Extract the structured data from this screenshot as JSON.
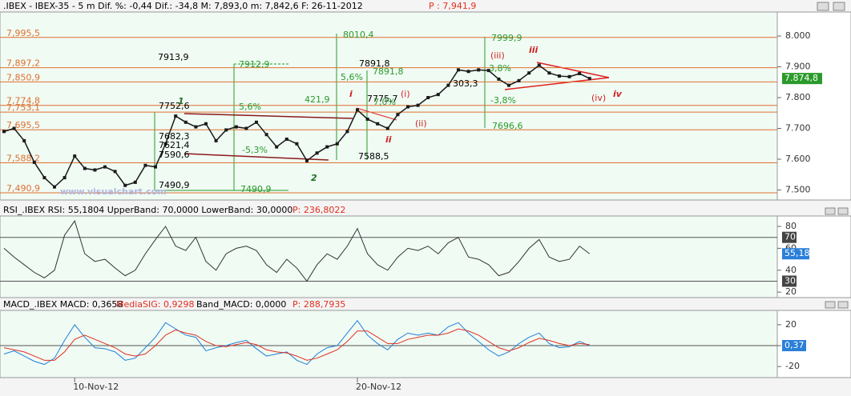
{
  "chart_data": [
    {
      "type": "line",
      "title": ".IBEX - IBEX-35 - 5 m Dif. %: -0,44 Dif.: -34,8 M: 7,893,0 m: 7,842,6 F: 26-11-2012",
      "title_extra": "P : 7,941,9",
      "watermark": "www.visualchart.com",
      "last_label": "7.874,8",
      "categories": [
        null,
        null,
        null,
        null,
        null,
        null,
        null,
        "10-Nov-12",
        null,
        null,
        null,
        null,
        null,
        null,
        null,
        null,
        null,
        null,
        null,
        null,
        null,
        null,
        null,
        null,
        null,
        null,
        null,
        null,
        null,
        null,
        null,
        null,
        null,
        null,
        null,
        "20-Nov-12",
        null,
        null,
        null,
        null,
        null,
        null,
        null,
        null,
        null,
        null,
        null,
        null,
        null,
        null,
        null,
        null,
        null,
        null,
        null,
        null,
        null,
        null,
        null
      ],
      "series": [
        {
          "name": "IBEX",
          "color": "#1a1a1a",
          "values": [
            7690,
            7700,
            7660,
            7590,
            7540,
            7510,
            7540,
            7610,
            7570,
            7565,
            7575,
            7560,
            7515,
            7525,
            7580,
            7575,
            7650,
            7740,
            7720,
            7705,
            7715,
            7660,
            7695,
            7705,
            7700,
            7720,
            7680,
            7640,
            7665,
            7650,
            7595,
            7620,
            7640,
            7650,
            7690,
            7760,
            7730,
            7715,
            7700,
            7745,
            7770,
            7775,
            7800,
            7810,
            7840,
            7890,
            7885,
            7890,
            7888,
            7860,
            7840,
            7855,
            7880,
            7905,
            7880,
            7870,
            7868,
            7878,
            7862
          ]
        }
      ],
      "ylim": [
        7467.5,
        8078
      ],
      "yticks": [
        {
          "value": 8000,
          "label": "8.000"
        },
        {
          "value": 7900,
          "label": "7.900"
        },
        {
          "value": 7800,
          "label": "7.800"
        },
        {
          "value": 7700,
          "label": "7.700"
        },
        {
          "value": 7600,
          "label": "7.600"
        },
        {
          "value": 7500,
          "label": "7.500"
        }
      ],
      "levels": [
        {
          "value": 7995.5,
          "label": "7,995,5"
        },
        {
          "value": 7897.2,
          "label": "7,897,2"
        },
        {
          "value": 7850.9,
          "label": "7,850,9"
        },
        {
          "value": 7774.8,
          "label": "7,774,8"
        },
        {
          "value": 7753.1,
          "label": "7,753,1"
        },
        {
          "value": 7695.5,
          "label": "7,695,5"
        },
        {
          "value": 7588.2,
          "label": "7,588,2"
        },
        {
          "value": 7490.9,
          "label": "7,490,9"
        }
      ],
      "level_color": "#e07030",
      "annotations": [
        "7913,9",
        "7912,9",
        "8010,4",
        "5,6%",
        "7891,8",
        "7891,8",
        "7999,9",
        "303,3",
        "-3,8%",
        "7696,6",
        "421,9",
        "7752,6",
        "5,6%",
        "7682,3",
        "7621,4",
        "7590,6",
        "-5,3%",
        "7490,9",
        "7490,9",
        "7588,5",
        "7775,7",
        "7,0%",
        "3,8%",
        "1",
        "2",
        "i",
        "ii",
        "iii",
        "iv",
        "(i)",
        "(ii)",
        "(iii)",
        "(iv)"
      ]
    },
    {
      "type": "line",
      "title": "RSI_.IBEX RSI: 55,1804 UpperBand: 70,0000 LowerBand: 30,0000",
      "title_extra": "P: 236,8022",
      "last_label": "55,18",
      "band_labels": [
        "70",
        "30"
      ],
      "bands": [
        70,
        30
      ],
      "series": [
        {
          "name": "RSI",
          "color": "#333333",
          "values": [
            60,
            52,
            45,
            38,
            33,
            40,
            72,
            85,
            55,
            48,
            50,
            42,
            35,
            40,
            55,
            68,
            80,
            62,
            58,
            70,
            48,
            40,
            55,
            60,
            62,
            58,
            45,
            38,
            50,
            42,
            30,
            45,
            55,
            50,
            62,
            78,
            55,
            45,
            40,
            52,
            60,
            58,
            62,
            55,
            65,
            70,
            52,
            50,
            45,
            35,
            38,
            48,
            60,
            68,
            52,
            48,
            50,
            62,
            55
          ]
        }
      ],
      "ylim": [
        15,
        89.5
      ],
      "yticks": [
        80,
        60,
        40,
        20
      ]
    },
    {
      "type": "line",
      "title": "MACD_.IBEX MACD: 0,3658",
      "title_sig": "MediaSIG: 0,9298",
      "title_band": "Band_MACD: 0,0000",
      "title_extra": "P: 288,7935",
      "last_label": "0,37",
      "series": [
        {
          "name": "MACD",
          "color": "#1e7fd8",
          "values": [
            -8,
            -5,
            -10,
            -15,
            -18,
            -12,
            5,
            20,
            8,
            -2,
            -3,
            -6,
            -14,
            -12,
            -2,
            8,
            22,
            16,
            10,
            8,
            -5,
            -2,
            0,
            3,
            5,
            -3,
            -10,
            -8,
            -6,
            -14,
            -18,
            -8,
            -2,
            0,
            12,
            24,
            10,
            2,
            -4,
            6,
            12,
            10,
            12,
            10,
            18,
            22,
            12,
            4,
            -4,
            -10,
            -6,
            2,
            8,
            12,
            2,
            -2,
            -1,
            4,
            0
          ]
        },
        {
          "name": "MediaSIG",
          "color": "#e03020",
          "values": [
            -2,
            -4,
            -6,
            -10,
            -14,
            -14,
            -6,
            6,
            10,
            6,
            2,
            -2,
            -8,
            -10,
            -8,
            0,
            10,
            15,
            12,
            10,
            4,
            0,
            -1,
            1,
            3,
            1,
            -4,
            -6,
            -7,
            -10,
            -14,
            -12,
            -8,
            -4,
            4,
            14,
            14,
            8,
            2,
            2,
            6,
            8,
            10,
            10,
            12,
            16,
            14,
            10,
            4,
            -2,
            -5,
            -2,
            3,
            7,
            5,
            2,
            0,
            2,
            1
          ]
        }
      ],
      "ylim": [
        -30.6,
        33.7
      ],
      "yticks": [
        20,
        0,
        -20
      ]
    }
  ]
}
